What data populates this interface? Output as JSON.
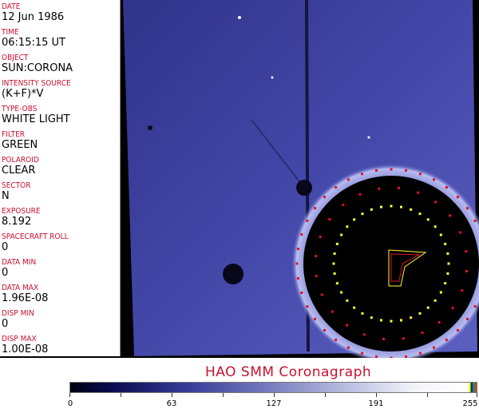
{
  "fields": [
    {
      "label": "DATE",
      "value": "12 Jun 1986"
    },
    {
      "label": "TIME",
      "value": "06:15:15 UT"
    },
    {
      "label": "OBJECT",
      "value": "SUN:CORONA"
    },
    {
      "label": "INTENSITY SOURCE",
      "value": "(K+F)*V"
    },
    {
      "label": "TYPE-OBS",
      "value": "WHITE LIGHT"
    },
    {
      "label": "FILTER",
      "value": "GREEN"
    },
    {
      "label": "POLAROID",
      "value": "CLEAR"
    },
    {
      "label": "SECTOR",
      "value": "N"
    },
    {
      "label": "EXPOSURE",
      "value": "8.192"
    },
    {
      "label": "SPACECRAFT ROLL",
      "value": "0"
    },
    {
      "label": "DATA MIN",
      "value": "0"
    },
    {
      "label": "DATA MAX",
      "value": "1.96E-08"
    },
    {
      "label": "DISP MIN",
      "value": "0"
    },
    {
      "label": "DISP MAX",
      "value": "1.00E-08"
    }
  ],
  "title": "HAO   SMM Coronagraph",
  "colorbar": {
    "ticks": [
      "0",
      "63",
      "127",
      "191",
      "255"
    ],
    "colors": {
      "low": "#000010",
      "mid": "#7a80c0",
      "high": "#ffffff"
    }
  },
  "colors": {
    "label": "#c8102e",
    "plate": "#3b3fa0",
    "marker_red": "#e0102a",
    "marker_yellow": "#ffff30"
  }
}
